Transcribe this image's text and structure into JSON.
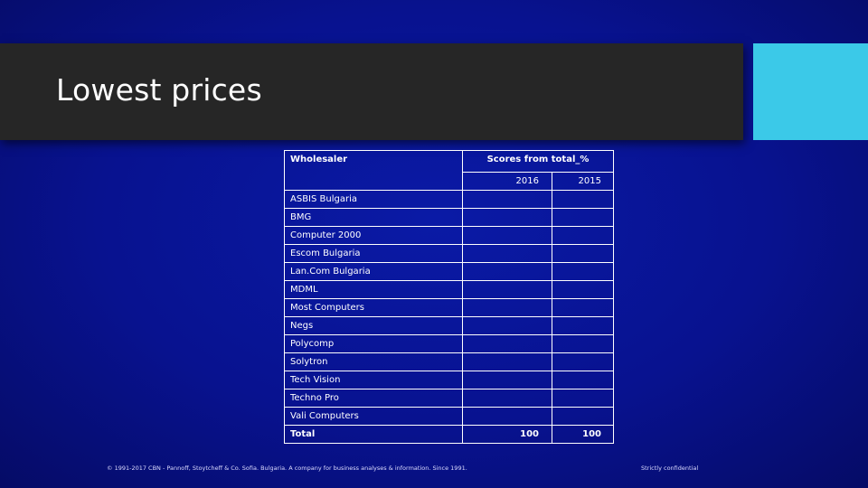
{
  "slide": {
    "title": "Lowest prices"
  },
  "table": {
    "header": {
      "wholesaler": "Wholesaler",
      "scores": "Scores from total_%",
      "year_a": "2016",
      "year_b": "2015"
    },
    "rows": [
      {
        "name": "ASBIS Bulgaria",
        "v2016": "",
        "v2015": ""
      },
      {
        "name": "BMG",
        "v2016": "",
        "v2015": ""
      },
      {
        "name": "Computer 2000",
        "v2016": "",
        "v2015": ""
      },
      {
        "name": "Escom Bulgaria",
        "v2016": "",
        "v2015": ""
      },
      {
        "name": "Lan.Com Bulgaria",
        "v2016": "",
        "v2015": ""
      },
      {
        "name": "MDML",
        "v2016": "",
        "v2015": ""
      },
      {
        "name": "Most Computers",
        "v2016": "",
        "v2015": ""
      },
      {
        "name": "Negs",
        "v2016": "",
        "v2015": ""
      },
      {
        "name": "Polycomp",
        "v2016": "",
        "v2015": ""
      },
      {
        "name": "Solytron",
        "v2016": "",
        "v2015": ""
      },
      {
        "name": "Tech Vision",
        "v2016": "",
        "v2015": ""
      },
      {
        "name": "Techno Pro",
        "v2016": "",
        "v2015": ""
      },
      {
        "name": "Vali Computers",
        "v2016": "",
        "v2015": ""
      }
    ],
    "total": {
      "name": "Total",
      "v2016": "100",
      "v2015": "100"
    }
  },
  "footer": {
    "copyright": "© 1991-2017 CBN - Pannoff, Stoytcheff & Co. Sofia. Bulgaria. A company for business analyses & information. Since 1991.",
    "confidential": "Strictly confidential"
  },
  "colors": {
    "background": "#08128f",
    "title_bar": "#262626",
    "accent": "#3bc9e8",
    "text": "#ffffff"
  }
}
